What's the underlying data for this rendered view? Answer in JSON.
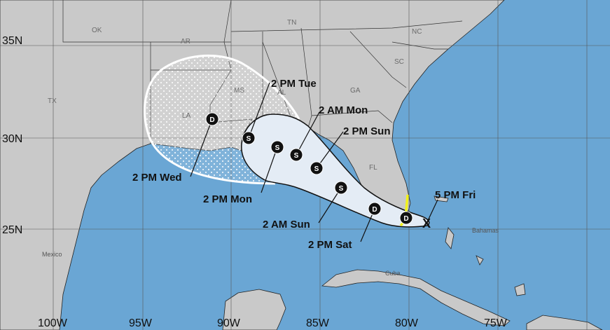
{
  "colors": {
    "ocean": "#6aa6d4",
    "land": "#c9c9c9",
    "cone": "#e4ecf5",
    "warning": "#f2f21a"
  },
  "lat_labels": [
    "35N",
    "30N",
    "25N"
  ],
  "lon_labels": [
    "100W",
    "95W",
    "90W",
    "85W",
    "80W",
    "75W"
  ],
  "states": [
    "OK",
    "AR",
    "TN",
    "NC",
    "SC",
    "TX",
    "MS",
    "AL",
    "GA",
    "LA",
    "FL"
  ],
  "places": {
    "mexico": "Mexico",
    "cuba": "Cuba",
    "bahamas": "Bahamas"
  },
  "track": [
    {
      "symbol": "X",
      "label": "5 PM Fri"
    },
    {
      "symbol": "D",
      "label": ""
    },
    {
      "symbol": "D",
      "label": "2 PM Sat"
    },
    {
      "symbol": "S",
      "label": "2 AM Sun"
    },
    {
      "symbol": "S",
      "label": "2 PM Sun"
    },
    {
      "symbol": "S",
      "label": "2 AM Mon"
    },
    {
      "symbol": "S",
      "label": "2 PM Mon"
    },
    {
      "symbol": "S",
      "label": "2 PM Tue"
    },
    {
      "symbol": "D",
      "label": "2 PM Wed"
    }
  ]
}
